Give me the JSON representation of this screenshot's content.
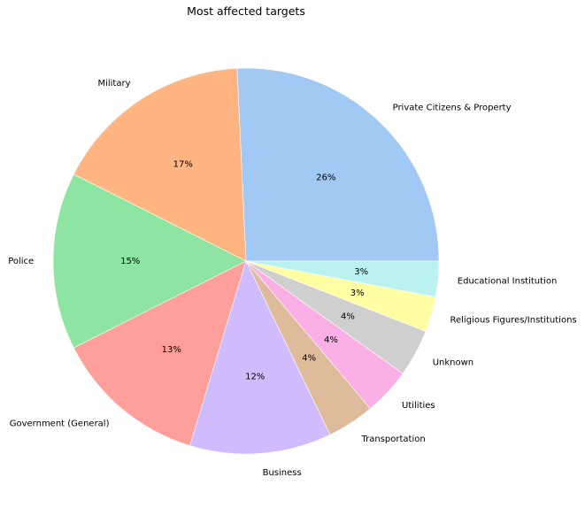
{
  "chart_data": {
    "type": "pie",
    "title": "Most affected targets",
    "categories": [
      "Private Citizens & Property",
      "Military",
      "Police",
      "Government (General)",
      "Business",
      "Transportation",
      "Utilities",
      "Unknown",
      "Religious Figures/Institutions",
      "Educational Institution"
    ],
    "values": [
      26,
      17,
      15,
      13,
      12,
      4,
      4,
      4,
      3,
      3
    ],
    "value_labels": [
      "26%",
      "17%",
      "15%",
      "13%",
      "12%",
      "4%",
      "4%",
      "4%",
      "3%",
      "3%"
    ],
    "colors": [
      "#a1c9f4",
      "#ffb482",
      "#8de5a1",
      "#ff9f9b",
      "#d0bbff",
      "#debb9b",
      "#fab0e4",
      "#cfcfcf",
      "#fffea3",
      "#b9f2f0"
    ],
    "start_angle_deg": 0,
    "direction": "counterclockwise",
    "legend": "none"
  }
}
